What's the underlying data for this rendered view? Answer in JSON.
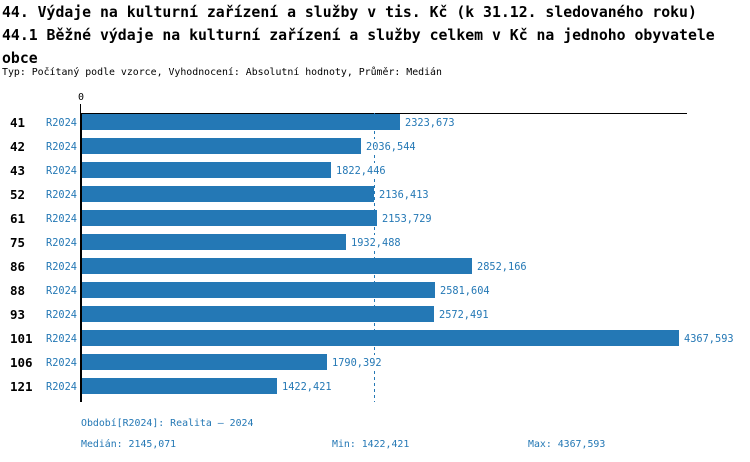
{
  "header": {
    "lines": [
      "44. Výdaje na kulturní zařízení a služby v tis. Kč (k 31.12. sledovaného roku)",
      "44.1 Běžné výdaje na kulturní zařízení a služby celkem v Kč na jednoho obyvatele",
      "obce"
    ],
    "subtitle": "Typ: Počítaný podle vzorce, Vyhodnocení: Absolutní hodnoty, Průměr: Medián"
  },
  "chart_data": {
    "type": "bar",
    "orientation": "horizontal",
    "title": "44.1 Běžné výdaje na kulturní zařízení a služby celkem v Kč na jednoho obyvatele obce",
    "categories": [
      "41",
      "42",
      "43",
      "52",
      "61",
      "75",
      "86",
      "88",
      "93",
      "101",
      "106",
      "121"
    ],
    "series": [
      {
        "name": "R2024",
        "values": [
          2323.673,
          2036.544,
          1822.446,
          2136.413,
          2153.729,
          1932.488,
          2852.166,
          2581.604,
          2572.491,
          4367.593,
          1790.392,
          1422.421
        ],
        "value_labels": [
          "2323,673",
          "2036,544",
          "1822,446",
          "2136,413",
          "2153,729",
          "1932,488",
          "2852,166",
          "2581,604",
          "2572,491",
          "4367,593",
          "1790,392",
          "1422,421"
        ]
      }
    ],
    "xlim": [
      0,
      4408
    ],
    "zero_tick_label": "0",
    "grid": false,
    "legend_position": "none",
    "median_reference_line": 2145.071,
    "median_line_style": "dashed",
    "bar_color": "#2478b5"
  },
  "footer": {
    "period": "Období[R2024]: Realita – 2024",
    "median": "Medián: 2145,071",
    "min": "Min: 1422,421",
    "max": "Max: 4367,593"
  },
  "colors": {
    "accent": "#2478b5",
    "axis": "#000000",
    "background": "#ffffff"
  }
}
